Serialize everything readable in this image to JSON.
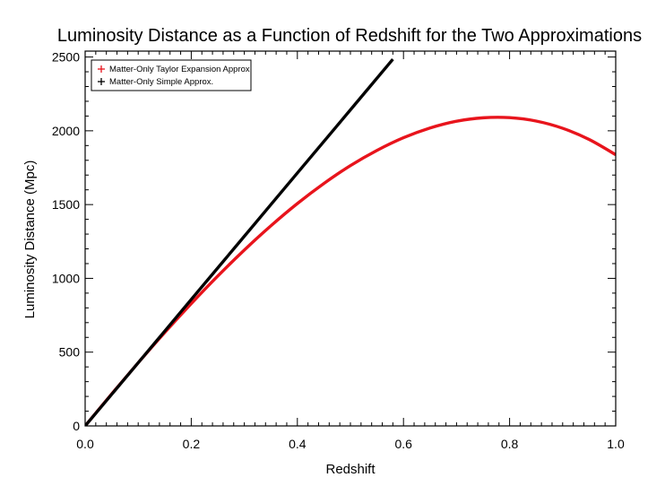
{
  "chart_data": {
    "type": "line",
    "title": "Luminosity Distance as a Function of Redshift for the Two Approximations",
    "xlabel": "Redshift",
    "ylabel": "Luminosity Distance (Mpc)",
    "xlim": [
      0.0,
      1.0
    ],
    "ylim": [
      0,
      2540
    ],
    "xticks": [
      0.0,
      0.2,
      0.4,
      0.6,
      0.8,
      1.0
    ],
    "xtick_labels": [
      "0.0",
      "0.2",
      "0.4",
      "0.6",
      "0.8",
      "1.0"
    ],
    "yticks": [
      0,
      500,
      1000,
      1500,
      2000,
      2500
    ],
    "ytick_labels": [
      "0",
      "500",
      "1000",
      "1500",
      "2000",
      "2500"
    ],
    "grid": false,
    "legend_position": "top-left",
    "legend_marker": "+",
    "series": [
      {
        "name": "Matter-Only Taylor Expansion Approx.",
        "color": "#e8141c",
        "x": [
          0.0,
          0.05,
          0.1,
          0.15,
          0.2,
          0.25,
          0.3,
          0.35,
          0.4,
          0.45,
          0.5,
          0.55,
          0.6,
          0.65,
          0.7,
          0.75,
          0.8,
          0.85,
          0.9,
          0.95,
          1.0
        ],
        "values": [
          0,
          217,
          428,
          633,
          829,
          1016,
          1192,
          1356,
          1507,
          1643,
          1764,
          1867,
          1953,
          2019,
          2065,
          2088,
          2089,
          2066,
          2017,
          1941,
          1838
        ]
      },
      {
        "name": "Matter-Only Simple Approx.",
        "color": "#000000",
        "x": [
          0.0,
          0.1,
          0.2,
          0.3,
          0.4,
          0.5,
          0.58
        ],
        "values": [
          0,
          428,
          857,
          1285,
          1714,
          2142,
          2485
        ]
      }
    ]
  }
}
